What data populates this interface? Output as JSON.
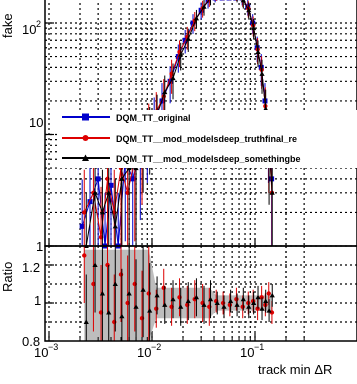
{
  "chart_data": [
    {
      "type": "scatter",
      "title": "",
      "xlabel": "track min ΔR",
      "ylabel": "fake",
      "xscale": "log",
      "yscale": "log",
      "xlim": [
        0.001,
        0.3
      ],
      "ylim": [
        0.6,
        250
      ],
      "x_ticks": [
        "10^-3",
        "10^-2",
        "10^-1"
      ],
      "y_ticks": [
        "1",
        "10",
        "10^2"
      ],
      "grid": true,
      "legend_position": "center-right",
      "series": [
        {
          "name": "DQM_TT_original",
          "color": "#0000cc",
          "marker": "square",
          "x": [
            0.0021,
            0.0025,
            0.003,
            0.0035,
            0.004,
            0.0047,
            0.0055,
            0.0065,
            0.0077,
            0.009,
            0.0105,
            0.0125,
            0.015,
            0.018,
            0.021,
            0.025,
            0.03,
            0.035,
            0.041,
            0.048,
            0.056,
            0.065,
            0.075,
            0.085,
            0.095,
            0.105,
            0.115,
            0.125,
            0.135,
            0.145
          ],
          "y": [
            1.5,
            2.5,
            4,
            1,
            3.5,
            1,
            6,
            4,
            7,
            10,
            14,
            20,
            30,
            50,
            70,
            100,
            130,
            160,
            180,
            200,
            210,
            190,
            170,
            140,
            100,
            60,
            40,
            20,
            10,
            4
          ]
        },
        {
          "name": "DQM_TT__mod_modelsdeep_truthfinal_re",
          "color": "#dd0000",
          "marker": "circle",
          "x": [
            0.0022,
            0.0027,
            0.0032,
            0.0037,
            0.0043,
            0.005,
            0.0058,
            0.0068,
            0.008,
            0.0093,
            0.011,
            0.013,
            0.0155,
            0.0185,
            0.022,
            0.026,
            0.031,
            0.036,
            0.042,
            0.049,
            0.057,
            0.066,
            0.076,
            0.086,
            0.096,
            0.106,
            0.116,
            0.126,
            0.136,
            0.146
          ],
          "y": [
            2,
            3,
            1.2,
            4,
            2,
            5,
            3,
            6,
            8,
            12,
            16,
            22,
            35,
            55,
            75,
            105,
            135,
            165,
            185,
            205,
            200,
            185,
            165,
            135,
            95,
            58,
            38,
            18,
            9,
            3
          ]
        },
        {
          "name": "DQM_TT__mod_modelsdeep_somethingbe",
          "color": "#000000",
          "marker": "triangle",
          "x": [
            0.0023,
            0.0028,
            0.0033,
            0.0038,
            0.0044,
            0.0051,
            0.006,
            0.007,
            0.0082,
            0.0095,
            0.0112,
            0.0133,
            0.016,
            0.019,
            0.0225,
            0.027,
            0.032,
            0.037,
            0.043,
            0.05,
            0.058,
            0.067,
            0.077,
            0.087,
            0.097,
            0.107,
            0.117,
            0.127,
            0.137,
            0.147
          ],
          "y": [
            1,
            3,
            2,
            3,
            1.5,
            4,
            5,
            5,
            9,
            11,
            15,
            24,
            32,
            52,
            72,
            110,
            140,
            170,
            190,
            210,
            205,
            180,
            160,
            130,
            90,
            55,
            35,
            17,
            8,
            3
          ]
        }
      ]
    },
    {
      "type": "scatter",
      "title": "",
      "xlabel": "track min ΔR",
      "ylabel": "Ratio",
      "xscale": "log",
      "xlim": [
        0.001,
        0.3
      ],
      "ylim": [
        0.8,
        1.3
      ],
      "x_ticks": [
        "10^-3",
        "10^-2",
        "10^-1"
      ],
      "y_ticks": [
        "0.8",
        "1",
        "1.2"
      ],
      "grid": true,
      "series": [
        {
          "name": "DQM_TT__mod_modelsdeep_truthfinal_re",
          "color": "#dd0000",
          "marker": "circle",
          "x": [
            0.0022,
            0.0027,
            0.0032,
            0.0037,
            0.0043,
            0.005,
            0.0058,
            0.0068,
            0.008,
            0.0093,
            0.011,
            0.013,
            0.0155,
            0.0185,
            0.022,
            0.026,
            0.031,
            0.036,
            0.042,
            0.049,
            0.057,
            0.066,
            0.076,
            0.086,
            0.096,
            0.106,
            0.116,
            0.126,
            0.136,
            0.146
          ],
          "y": [
            1.25,
            1.1,
            0.95,
            1.2,
            0.9,
            1.15,
            1.0,
            1.1,
            0.92,
            1.05,
            0.97,
            1.08,
            0.98,
            1.03,
            0.99,
            1.02,
            1.0,
            0.98,
            1.01,
            1.0,
            0.99,
            1.02,
            0.98,
            1.0,
            1.01,
            0.97,
            1.03,
            0.99,
            1.05,
            0.95
          ]
        },
        {
          "name": "DQM_TT__mod_modelsdeep_somethingbe",
          "color": "#000000",
          "marker": "triangle",
          "x": [
            0.0023,
            0.0028,
            0.0033,
            0.0038,
            0.0044,
            0.0051,
            0.006,
            0.007,
            0.0082,
            0.0095,
            0.0112,
            0.0133,
            0.016,
            0.019,
            0.0225,
            0.027,
            0.032,
            0.037,
            0.043,
            0.05,
            0.058,
            0.067,
            0.077,
            0.087,
            0.097,
            0.107,
            0.117,
            0.127,
            0.137,
            0.147
          ],
          "y": [
            0.9,
            1.2,
            1.05,
            0.95,
            1.1,
            0.93,
            1.05,
            0.98,
            1.07,
            0.96,
            1.04,
            0.99,
            1.02,
            0.98,
            1.01,
            1.03,
            0.99,
            1.02,
            1.0,
            0.98,
            1.01,
            0.99,
            1.02,
            0.98,
            1.0,
            1.03,
            0.97,
            1.01,
            0.96,
            1.04
          ]
        }
      ]
    }
  ]
}
